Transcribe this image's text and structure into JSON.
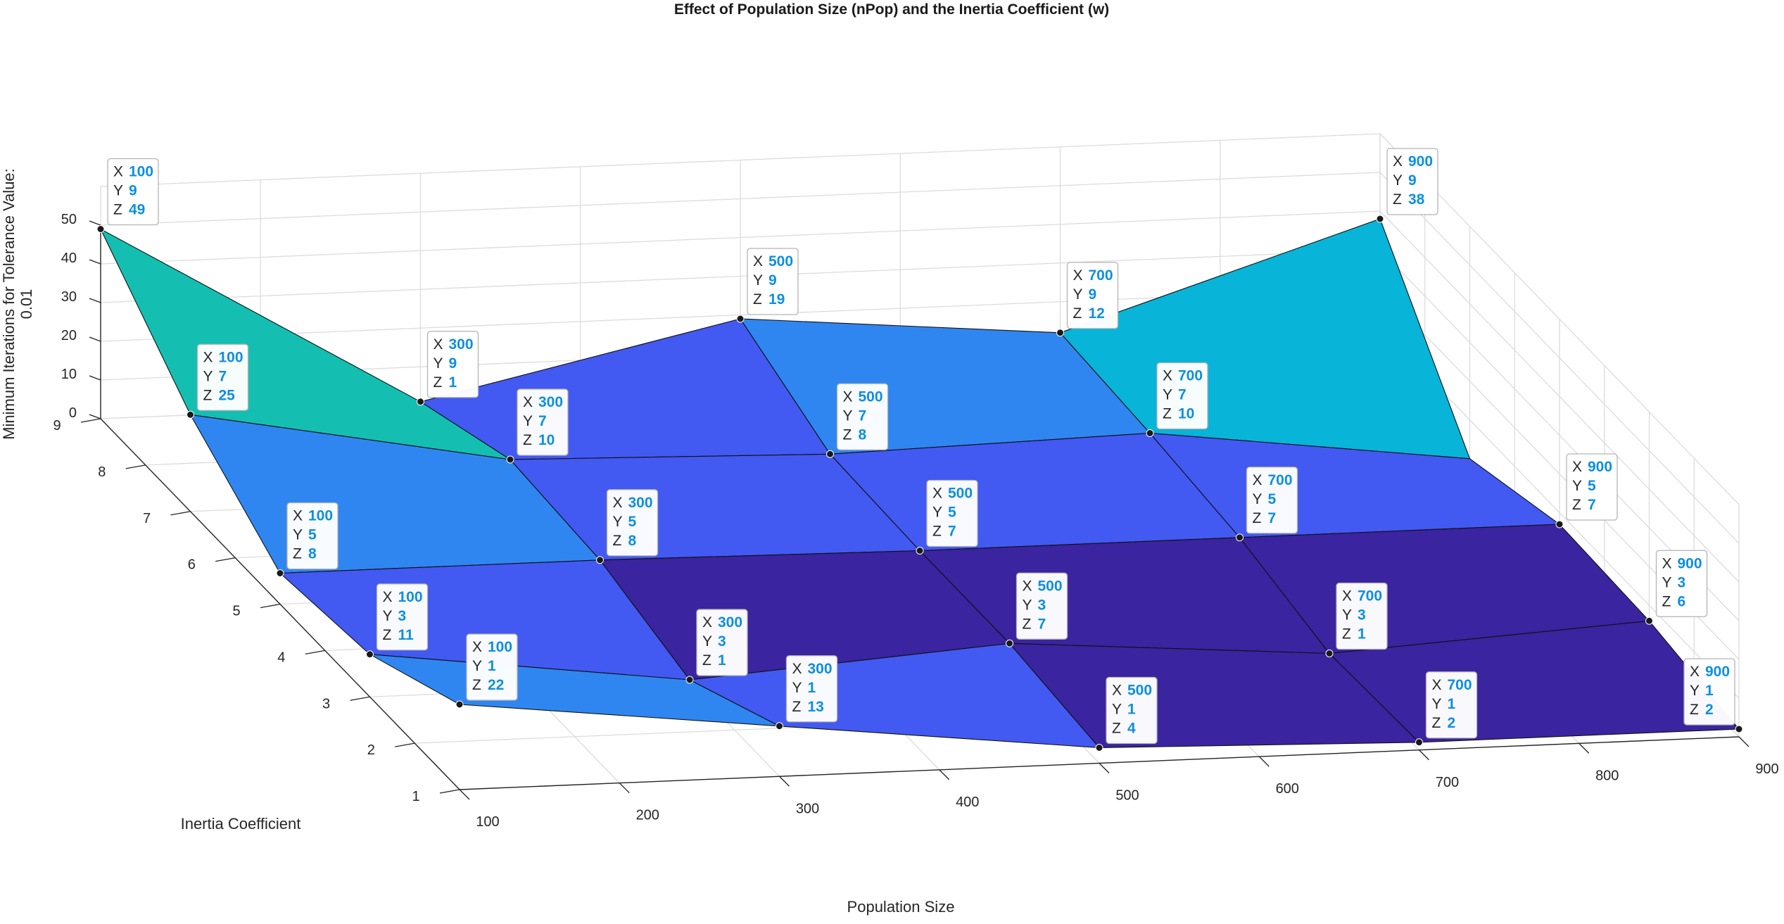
{
  "chart_data": {
    "type": "surface",
    "title": "Effect of Population Size (nPop) and the Inertia Coefficient (w)",
    "xlabel": "Population Size",
    "ylabel": "Inertia Coefficient",
    "zlabel_line1": "Minimum Iterations for Tolerance Value:",
    "zlabel_line2": "0.01",
    "x": [
      100,
      300,
      500,
      700,
      900
    ],
    "y": [
      1,
      3,
      5,
      7,
      9
    ],
    "z": [
      [
        22,
        13,
        4,
        2,
        2
      ],
      [
        11,
        1,
        7,
        1,
        6
      ],
      [
        8,
        8,
        7,
        7,
        7
      ],
      [
        25,
        10,
        8,
        10,
        0
      ],
      [
        49,
        1,
        19,
        12,
        38
      ]
    ],
    "xlim": [
      100,
      900
    ],
    "ylim": [
      1,
      9
    ],
    "zlim": [
      0,
      50
    ],
    "xticks": [
      "100",
      "200",
      "300",
      "400",
      "500",
      "600",
      "700",
      "800",
      "900"
    ],
    "yticks": [
      "1",
      "2",
      "3",
      "4",
      "5",
      "6",
      "7",
      "8",
      "9"
    ],
    "zticks": [
      "0",
      "10",
      "20",
      "30",
      "40",
      "50"
    ],
    "grid": true,
    "datatips": [
      {
        "x": "100",
        "y": "9",
        "z": "49"
      },
      {
        "x": "100",
        "y": "7",
        "z": "25"
      },
      {
        "x": "100",
        "y": "5",
        "z": "8"
      },
      {
        "x": "100",
        "y": "3",
        "z": "11"
      },
      {
        "x": "100",
        "y": "1",
        "z": "22"
      },
      {
        "x": "300",
        "y": "9",
        "z": "1"
      },
      {
        "x": "300",
        "y": "7",
        "z": "10"
      },
      {
        "x": "300",
        "y": "5",
        "z": "8"
      },
      {
        "x": "300",
        "y": "3",
        "z": "1"
      },
      {
        "x": "300",
        "y": "1",
        "z": "13"
      },
      {
        "x": "500",
        "y": "9",
        "z": "19"
      },
      {
        "x": "500",
        "y": "7",
        "z": "8"
      },
      {
        "x": "500",
        "y": "5",
        "z": "7"
      },
      {
        "x": "500",
        "y": "3",
        "z": "7"
      },
      {
        "x": "500",
        "y": "1",
        "z": "4"
      },
      {
        "x": "700",
        "y": "9",
        "z": "12"
      },
      {
        "x": "700",
        "y": "7",
        "z": "10"
      },
      {
        "x": "700",
        "y": "5",
        "z": "7"
      },
      {
        "x": "700",
        "y": "3",
        "z": "1"
      },
      {
        "x": "700",
        "y": "1",
        "z": "2"
      },
      {
        "x": "900",
        "y": "9",
        "z": "38"
      },
      {
        "x": "900",
        "y": "5",
        "z": "7"
      },
      {
        "x": "900",
        "y": "3",
        "z": "6"
      },
      {
        "x": "900",
        "y": "1",
        "z": "2"
      }
    ],
    "datatip_key_x": "X",
    "datatip_key_y": "Y",
    "datatip_key_z": "Z",
    "colors": {
      "low": "#3a24a0",
      "mid": "#4259f2",
      "mid_high": "#2f86f0",
      "high": "#08b4d8",
      "top": "#14bfb2",
      "grid": "#dcdcdc",
      "axis": "#262626",
      "datatip_value": "#0d8fe0"
    }
  }
}
